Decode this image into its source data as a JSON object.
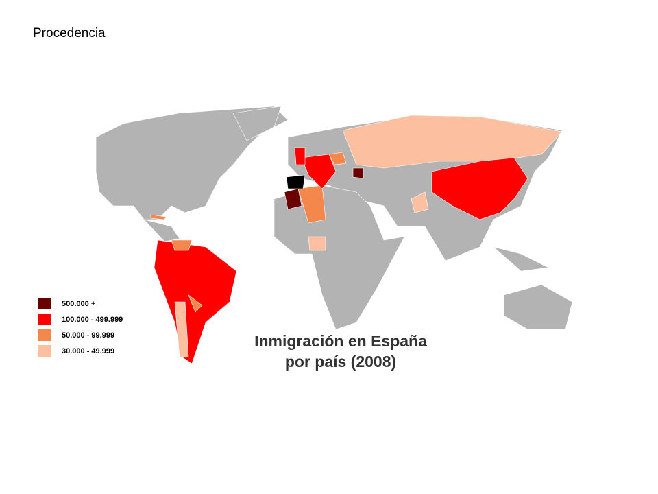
{
  "slide_title": "Procedencia",
  "map": {
    "title_lines": [
      "Inmigración en España",
      "por país (2008)"
    ],
    "legend": [
      {
        "label": "500.000 +",
        "color": "#6b0000"
      },
      {
        "label": "100.000 - 499.999",
        "color": "#ff0000"
      },
      {
        "label": "50.000 -   99.999",
        "color": "#f4874b"
      },
      {
        "label": "30.000 -   49.999",
        "color": "#fcbfa0"
      }
    ]
  }
}
